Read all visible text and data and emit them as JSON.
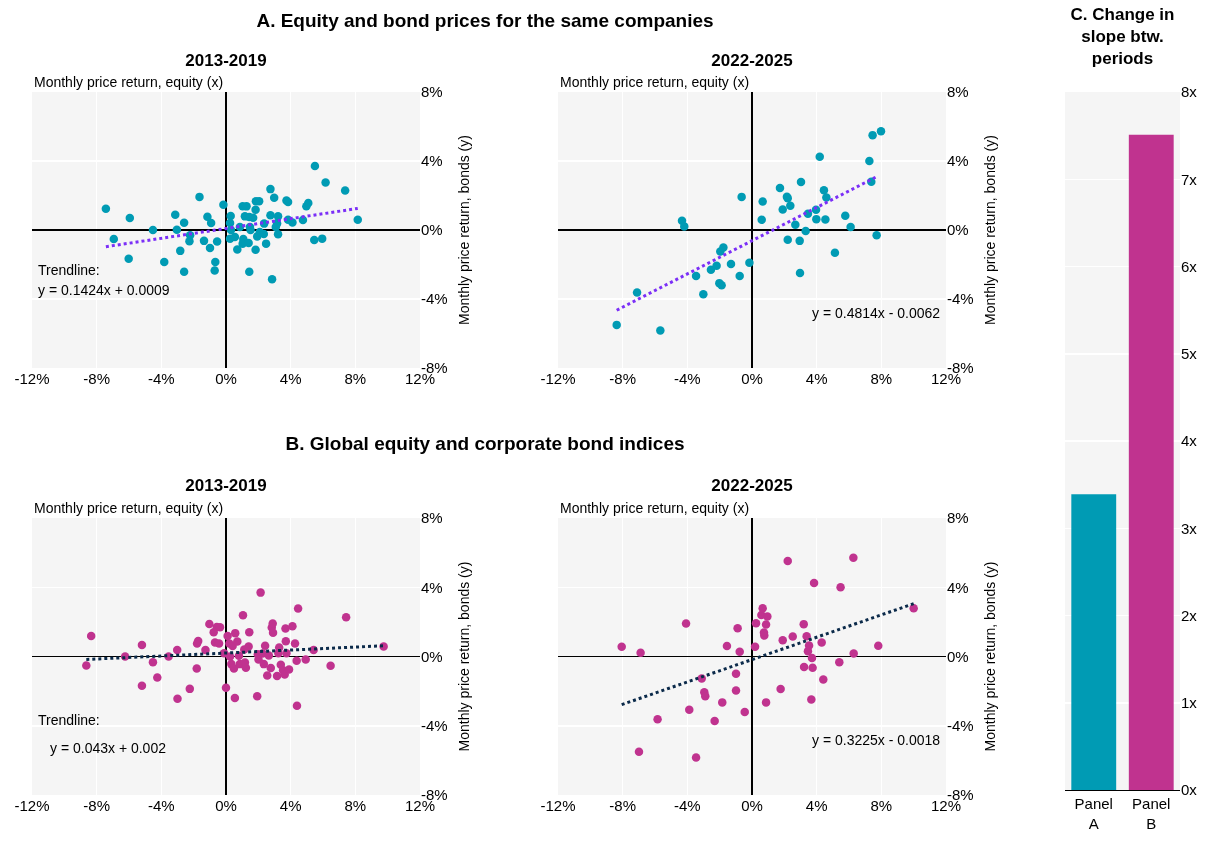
{
  "chart_data": [
    {
      "type": "scatter",
      "subtitle": "A. Equity and bond prices for the same companies",
      "title": "2013-2019",
      "xlabel": "Monthly price return, equity (x)",
      "ylabel": "Monthly price return, bonds (y)",
      "annotations": [
        "Trendline:",
        "y = 0.1424x + 0.0009"
      ],
      "xlim": [
        -12,
        12
      ],
      "ylim": [
        -8,
        8
      ],
      "xticks": [
        {
          "value": -12,
          "label": "-12%"
        },
        {
          "value": -8,
          "label": "-8%"
        },
        {
          "value": -4,
          "label": "-4%"
        },
        {
          "value": 0,
          "label": "0%"
        },
        {
          "value": 4,
          "label": "4%"
        },
        {
          "value": 8,
          "label": "8%"
        },
        {
          "value": 12,
          "label": "12%"
        }
      ],
      "yticks": [
        {
          "value": -8,
          "label": "-8%"
        },
        {
          "value": -4,
          "label": "-4%"
        },
        {
          "value": 0,
          "label": "0%"
        },
        {
          "value": 4,
          "label": "4%"
        },
        {
          "value": 8,
          "label": "8%"
        }
      ],
      "grid": true,
      "marker": "circle",
      "series": [
        {
          "color": "#009bb4",
          "x": [
            -7.43,
            -5.95,
            -6.94,
            -6.02,
            -4.52,
            -3.82,
            -3.14,
            -3.04,
            -2.59,
            -2.83,
            -2.59,
            -2.26,
            -2.22,
            -1.64,
            -1.36,
            -1.15,
            -0.92,
            -0.99,
            -0.55,
            -0.66,
            -0.7,
            -0.16,
            0.29,
            0.25,
            0.31,
            0.25,
            0.55,
            0.7,
            0.86,
            1.03,
            1.27,
            1.07,
            1.03,
            1.17,
            1.44,
            1.48,
            1.68,
            1.52,
            1.4,
            1.44,
            1.83,
            1.85,
            2.05,
            1.83,
            1.93,
            2.09,
            2.36,
            2.34,
            2.48,
            2.75,
            2.75,
            2.85,
            2.98,
            3.08,
            3.16,
            3.22,
            3.22,
            3.74,
            3.84,
            3.84,
            4.11,
            4.76,
            4.97,
            5.09,
            5.46,
            5.95,
            5.5,
            6.16,
            7.37,
            8.15
          ],
          "values": [
            1.23,
            0.69,
            -0.52,
            -1.67,
            0,
            -1.85,
            0.88,
            0.02,
            0.42,
            -1.21,
            -2.42,
            -0.65,
            -0.31,
            1.92,
            -0.63,
            0.77,
            0.4,
            -1.04,
            -0.67,
            -1.85,
            -2.35,
            1.46,
            0.81,
            0.4,
            0,
            -0.5,
            -0.4,
            -1.13,
            0.17,
            1.38,
            1.37,
            -0.52,
            -0.79,
            0.79,
            0.75,
            0.17,
            0.71,
            0,
            -0.75,
            -2.42,
            1.17,
            1.67,
            1.67,
            -1.15,
            -0.37,
            -0.12,
            0.37,
            -0.23,
            -0.79,
            0.85,
            2.37,
            -2.85,
            1.87,
            0.17,
            0.37,
            0.79,
            -0.25,
            1.71,
            1.62,
            0.6,
            0.44,
            0.58,
            1.38,
            1.56,
            -0.58,
            -0.5,
            3.71,
            2.75,
            2.29,
            0.6
          ]
        },
        {
          "type": "line",
          "color": "#7b2ff7",
          "line_style": "dotted",
          "marker": "none",
          "x": [
            -7.43,
            8.15
          ],
          "values": [
            -0.97,
            1.25
          ]
        }
      ]
    },
    {
      "type": "scatter",
      "title": "2022-2025",
      "xlabel": "Monthly price return, equity (x)",
      "ylabel": "Monthly price return, bonds (y)",
      "annotations": [
        "y = 0.4814x - 0.0062"
      ],
      "xlim": [
        -12,
        12
      ],
      "ylim": [
        -8,
        8
      ],
      "xticks": [
        {
          "value": -12,
          "label": "-12%"
        },
        {
          "value": -8,
          "label": "-8%"
        },
        {
          "value": -4,
          "label": "-4%"
        },
        {
          "value": 0,
          "label": "0%"
        },
        {
          "value": 4,
          "label": "4%"
        },
        {
          "value": 8,
          "label": "8%"
        },
        {
          "value": 12,
          "label": "12%"
        }
      ],
      "yticks": [
        {
          "value": -8,
          "label": "-8%"
        },
        {
          "value": -4,
          "label": "-4%"
        },
        {
          "value": 0,
          "label": "0%"
        },
        {
          "value": 4,
          "label": "4%"
        },
        {
          "value": 8,
          "label": "8%"
        }
      ],
      "grid": true,
      "marker": "circle",
      "series": [
        {
          "color": "#009bb4",
          "x": [
            -8.37,
            -7.11,
            -5.67,
            -4.33,
            -4.19,
            -3.46,
            -3.01,
            -2.54,
            -2.19,
            -2.02,
            -1.88,
            -1.96,
            -1.77,
            -1.3,
            -0.76,
            -0.64,
            -0.16,
            0.6,
            0.66,
            1.73,
            1.9,
            2.16,
            2.21,
            2.21,
            2.37,
            2.68,
            2.95,
            2.97,
            3.03,
            3.32,
            3.46,
            3.96,
            3.98,
            4.19,
            4.45,
            4.54,
            4.6,
            5.13,
            5.77,
            6.1,
            7.26,
            7.38,
            7.46,
            7.71,
            7.98
          ],
          "values": [
            -5.5,
            -3.62,
            -5.82,
            0.54,
            0.21,
            -2.66,
            -3.72,
            -2.3,
            -2.07,
            -3.08,
            -3.2,
            -1.25,
            -1.02,
            -1.97,
            -2.66,
            1.92,
            -1.9,
            0.59,
            1.65,
            2.43,
            1.19,
            1.93,
            1.84,
            -0.57,
            1.4,
            0.31,
            -0.63,
            -2.49,
            2.78,
            -0.06,
            0.94,
            1.17,
            0.63,
            4.25,
            2.3,
            0.61,
            1.88,
            -1.32,
            0.82,
            0.17,
            4,
            2.8,
            5.5,
            -0.31,
            5.73
          ]
        },
        {
          "type": "line",
          "color": "#7b2ff7",
          "line_style": "dotted",
          "marker": "none",
          "x": [
            -8.37,
            7.71
          ],
          "values": [
            -4.65,
            3.09
          ]
        }
      ]
    },
    {
      "type": "scatter",
      "subtitle": "B. Global equity and corporate bond indices",
      "title": "2013-2019",
      "xlabel": "Monthly price return, equity (x)",
      "ylabel": "Monthly price return, bonds (y)",
      "annotations": [
        "Trendline:",
        "y = 0.043x + 0.002"
      ],
      "xlim": [
        -12,
        12
      ],
      "ylim": [
        -8,
        8
      ],
      "xticks": [
        {
          "value": -12,
          "label": "-12%"
        },
        {
          "value": -8,
          "label": "-8%"
        },
        {
          "value": -4,
          "label": "-4%"
        },
        {
          "value": 0,
          "label": "0%"
        },
        {
          "value": 4,
          "label": "4%"
        },
        {
          "value": 8,
          "label": "8%"
        },
        {
          "value": 12,
          "label": "12%"
        }
      ],
      "yticks": [
        {
          "value": -8,
          "label": "-8%"
        },
        {
          "value": -4,
          "label": "-4%"
        },
        {
          "value": 0,
          "label": "0%"
        },
        {
          "value": 4,
          "label": "4%"
        },
        {
          "value": 8,
          "label": "8%"
        }
      ],
      "grid": true,
      "marker": "circle",
      "series": [
        {
          "color": "#c0338f",
          "x": [
            -8.64,
            -8.34,
            -6.24,
            -5.2,
            -5.2,
            -4.52,
            -4.25,
            -3.55,
            -3.02,
            -3,
            -2.24,
            -1.81,
            -1.79,
            -1.72,
            -1.27,
            -1.03,
            -0.76,
            -0.68,
            -0.57,
            -0.43,
            -0.37,
            -0.12,
            0,
            0.1,
            0.21,
            0.25,
            0.33,
            0.41,
            0.49,
            0.57,
            0.7,
            0.55,
            0.8,
            0.86,
            1.05,
            1.13,
            1.17,
            1.23,
            1.4,
            1.44,
            1.97,
            1.93,
            2.01,
            2.14,
            2.26,
            2.34,
            2.42,
            2.55,
            2.65,
            2.77,
            2.83,
            2.89,
            2.91,
            3.16,
            3.24,
            3.29,
            3.39,
            3.53,
            3.63,
            3.68,
            3.7,
            3.74,
            3.9,
            4.11,
            4.27,
            4.37,
            4.39,
            4.46,
            4.93,
            5.42,
            6.47,
            7.43,
            9.75
          ],
          "values": [
            -0.52,
            1.19,
            0,
            0.67,
            -1.69,
            -0.33,
            -1.21,
            0,
            0.38,
            -2.44,
            -1.87,
            -0.69,
            0.75,
            0.9,
            0.38,
            1.88,
            1.4,
            0.81,
            1.71,
            0.75,
            1.69,
            0.19,
            -1.81,
            1.19,
            0.75,
            0,
            -0.44,
            0.6,
            -0.69,
            1.35,
            0.87,
            -2.4,
            0.04,
            -0.44,
            2.38,
            0.4,
            -0.35,
            -0.65,
            0.58,
            1.4,
            0.13,
            -2.29,
            -0.17,
            3.69,
            0.17,
            -0.44,
            0.62,
            -1.1,
            0.06,
            -0.67,
            1.67,
            1.9,
            1.37,
            -1.12,
            0.19,
            0.52,
            -0.48,
            -0.79,
            -1.04,
            1.62,
            0.88,
            0.19,
            -0.75,
            1.75,
            0.75,
            -0.25,
            -2.85,
            2.77,
            -0.17,
            0.37,
            -0.54,
            2.27,
            0.58
          ]
        },
        {
          "type": "line",
          "color": "#0b2a4a",
          "line_style": "dotted",
          "marker": "none",
          "x": [
            -8.64,
            9.75
          ],
          "values": [
            -0.17,
            0.62
          ]
        }
      ]
    },
    {
      "type": "scatter",
      "title": "2022-2025",
      "xlabel": "Monthly price return, equity (x)",
      "ylabel": "Monthly price return, bonds (y)",
      "annotations": [
        "y = 0.3225x - 0.0018"
      ],
      "xlim": [
        -12,
        12
      ],
      "ylim": [
        -8,
        8
      ],
      "xticks": [
        {
          "value": -12,
          "label": "-12%"
        },
        {
          "value": -8,
          "label": "-8%"
        },
        {
          "value": -4,
          "label": "-4%"
        },
        {
          "value": 0,
          "label": "0%"
        },
        {
          "value": 4,
          "label": "4%"
        },
        {
          "value": 8,
          "label": "8%"
        },
        {
          "value": 12,
          "label": "12%"
        }
      ],
      "yticks": [
        {
          "value": -8,
          "label": "-8%"
        },
        {
          "value": -4,
          "label": "-4%"
        },
        {
          "value": 0,
          "label": "0%"
        },
        {
          "value": 4,
          "label": "4%"
        },
        {
          "value": 8,
          "label": "8%"
        }
      ],
      "grid": true,
      "marker": "circle",
      "series": [
        {
          "color": "#c0338f",
          "x": [
            -8.06,
            -6.89,
            -6.99,
            -5.84,
            -4.08,
            -3.88,
            -3.46,
            -3.11,
            -2.95,
            -2.89,
            -2.31,
            -1.84,
            -1.55,
            -0.99,
            -0.99,
            -0.89,
            -0.76,
            -0.45,
            0.19,
            0.25,
            0.58,
            0.66,
            0.76,
            0.74,
            0.87,
            0.95,
            0.87,
            1.77,
            1.9,
            2.21,
            2.52,
            3.2,
            3.22,
            3.38,
            3.46,
            3.53,
            3.67,
            3.71,
            3.75,
            3.84,
            4.31,
            4.41,
            5.4,
            5.48,
            6.27,
            6.29,
            7.81,
            10
          ],
          "values": [
            0.56,
            0.21,
            -5.5,
            -3.63,
            1.9,
            -3.08,
            -5.83,
            -1.27,
            -2.06,
            -2.29,
            -3.73,
            -2.65,
            0.6,
            -1,
            -1.96,
            1.63,
            0.27,
            -3.21,
            0.56,
            1.92,
            2.4,
            2.79,
            1.21,
            1.38,
            1.85,
            2.31,
            -2.65,
            -1.88,
            0.94,
            5.52,
            1.15,
            1.87,
            -0.6,
            1.17,
            0.31,
            0.63,
            -2.48,
            -0.08,
            -0.65,
            4.25,
            0.81,
            -1.33,
            -0.33,
            4,
            5.71,
            0.17,
            0.62,
            2.79
          ]
        },
        {
          "type": "line",
          "color": "#0b2a4a",
          "line_style": "dotted",
          "marker": "none",
          "x": [
            -8.06,
            10
          ],
          "values": [
            -2.78,
            3.05
          ]
        }
      ]
    },
    {
      "type": "bar",
      "title": "C. Change in slope btw. periods",
      "categories": [
        "Panel A",
        "Panel B"
      ],
      "values": [
        3.39,
        7.51
      ],
      "colors": [
        "#009bb4",
        "#c0338f"
      ],
      "ylim": [
        0,
        8
      ],
      "yticks": [
        {
          "value": 0,
          "label": "0x"
        },
        {
          "value": 1,
          "label": "1x"
        },
        {
          "value": 2,
          "label": "2x"
        },
        {
          "value": 3,
          "label": "3x"
        },
        {
          "value": 4,
          "label": "4x"
        },
        {
          "value": 5,
          "label": "5x"
        },
        {
          "value": 6,
          "label": "6x"
        },
        {
          "value": 7,
          "label": "7x"
        },
        {
          "value": 8,
          "label": "8x"
        }
      ],
      "grid": "y"
    }
  ]
}
